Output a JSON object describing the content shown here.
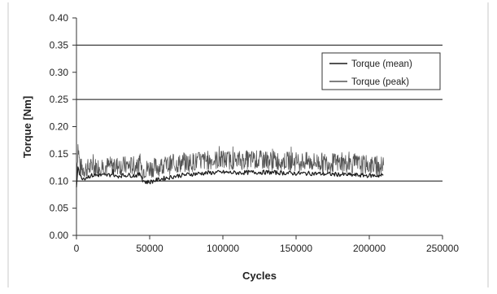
{
  "chart_data": {
    "type": "line",
    "title": "",
    "xlabel": "Cycles",
    "ylabel": "Torque [Nm]",
    "xlim": [
      0,
      250000
    ],
    "ylim": [
      0,
      0.4
    ],
    "x_ticks": [
      "0",
      "50000",
      "100000",
      "150000",
      "200000",
      "250000"
    ],
    "y_ticks": [
      "0.00",
      "0.05",
      "0.10",
      "0.15",
      "0.20",
      "0.25",
      "0.30",
      "0.35",
      "0.40"
    ],
    "grid": "horizontal major lines at 0.10, 0.25, 0.35",
    "legend_position": "top-right",
    "series": [
      {
        "name": "Torque  (mean)",
        "color": "#1a1a1a",
        "x": [
          0,
          1000,
          2500,
          5000,
          10000,
          15000,
          20000,
          24000,
          25000,
          26000,
          28000,
          30000,
          35000,
          40000,
          44000,
          45000,
          47000,
          50000,
          55000,
          60000,
          70000,
          80000,
          90000,
          100000,
          110000,
          120000,
          130000,
          140000,
          150000,
          160000,
          170000,
          180000,
          190000,
          200000,
          210000
        ],
        "y": [
          0.09,
          0.13,
          0.108,
          0.105,
          0.11,
          0.111,
          0.11,
          0.112,
          0.118,
          0.108,
          0.109,
          0.11,
          0.111,
          0.11,
          0.112,
          0.103,
          0.098,
          0.098,
          0.102,
          0.105,
          0.11,
          0.113,
          0.115,
          0.116,
          0.115,
          0.116,
          0.116,
          0.115,
          0.114,
          0.114,
          0.113,
          0.112,
          0.111,
          0.11,
          0.11
        ]
      },
      {
        "name": "Torque (peak)",
        "color": "#555555",
        "x": [
          0,
          1000,
          2500,
          5000,
          10000,
          20000,
          30000,
          40000,
          44000,
          45000,
          50000,
          60000,
          70000,
          80000,
          90000,
          100000,
          110000,
          120000,
          130000,
          140000,
          150000,
          160000,
          170000,
          180000,
          190000,
          200000,
          210000
        ],
        "y": [
          0.1,
          0.165,
          0.125,
          0.122,
          0.125,
          0.127,
          0.128,
          0.128,
          0.129,
          0.12,
          0.124,
          0.128,
          0.132,
          0.135,
          0.138,
          0.139,
          0.138,
          0.139,
          0.138,
          0.137,
          0.136,
          0.135,
          0.134,
          0.133,
          0.131,
          0.129,
          0.126
        ]
      }
    ]
  }
}
